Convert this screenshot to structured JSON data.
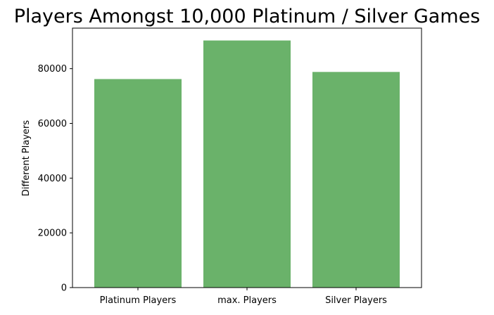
{
  "chart_data": {
    "type": "bar",
    "title": "Players Amongst 10,000 Platinum / Silver Games",
    "xlabel": "",
    "ylabel": "Different Players",
    "categories": [
      "Platinum Players",
      "max. Players",
      "Silver Players"
    ],
    "values": [
      76200,
      90300,
      78800
    ],
    "ylim": [
      0,
      94815
    ],
    "yticks": [
      0,
      20000,
      40000,
      60000,
      80000
    ],
    "ytick_labels": [
      "0",
      "20000",
      "40000",
      "60000",
      "80000"
    ],
    "bar_color": "#6ab26a",
    "grid": false,
    "legend": "none"
  }
}
